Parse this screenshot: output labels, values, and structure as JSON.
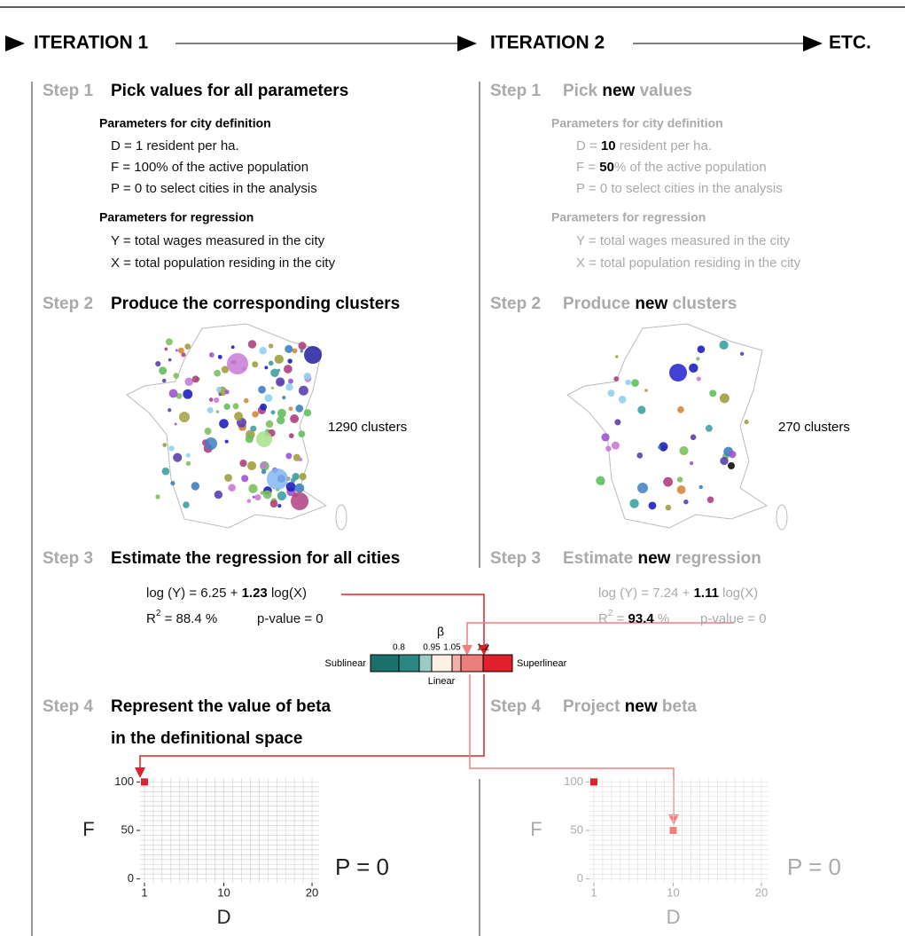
{
  "header": {
    "iterations": [
      "ITERATION 1",
      "ITERATION 2"
    ],
    "etc": "ETC."
  },
  "columns": [
    {
      "step1": {
        "label": "Step 1",
        "title": [
          [
            {
              "text": "Pick values for all parameters"
            }
          ]
        ],
        "city_heading": "Parameters for city definition",
        "city_params": [
          [
            {
              "text": "D = 1 resident per ha."
            }
          ],
          [
            {
              "text": "F = 100% of the active population"
            }
          ],
          [
            {
              "text": "P = 0 to select cities in the analysis"
            }
          ]
        ],
        "regression_heading": "Parameters for regression",
        "regression_params": [
          [
            {
              "text": "Y = total wages measured in the city"
            }
          ],
          [
            {
              "text": "X = total population residing in the city"
            }
          ]
        ]
      },
      "step2": {
        "label": "Step 2",
        "title": [
          [
            {
              "text": "Produce the corresponding clusters"
            }
          ]
        ],
        "clusters": "1290 clusters"
      },
      "step3": {
        "label": "Step 3",
        "title": [
          [
            {
              "text": "Estimate the regression for all cities"
            }
          ]
        ],
        "equation": [
          {
            "text": "log (Y) = 6.25 + "
          },
          {
            "text": "1.23",
            "emphasis": true
          },
          {
            "text": " log(X)"
          }
        ],
        "r2": [
          {
            "text": "R"
          },
          {
            "text": "2",
            "sup": true
          },
          {
            "text": " = 88.4 %"
          }
        ],
        "p_value": "p-value = 0"
      },
      "step4": {
        "label": "Step 4",
        "title": [
          [
            {
              "text": "Represent the value of beta"
            }
          ],
          [
            {
              "text": "in the definitional space"
            }
          ]
        ],
        "chart": {
          "type": "scatter",
          "x": [
            1
          ],
          "y": [
            100
          ],
          "colors": [
            "#e0202a"
          ],
          "xlim": [
            0.5,
            20.8
          ],
          "ylim": [
            -4,
            104
          ],
          "xticks": [
            1,
            10,
            20
          ],
          "yticks": [
            0,
            50,
            100
          ],
          "xlabel": "D",
          "ylabel": "F",
          "annotation": "P = 0"
        }
      }
    },
    {
      "step1": {
        "label": "Step 1",
        "title": [
          [
            {
              "text": "Pick "
            },
            {
              "text": "new",
              "emphasis": true
            },
            {
              "text": " values"
            }
          ]
        ],
        "city_heading": "Parameters for city definition",
        "city_params": [
          [
            {
              "text": "D = "
            },
            {
              "text": "10",
              "emphasis": true
            },
            {
              "text": " resident per ha."
            }
          ],
          [
            {
              "text": "F = "
            },
            {
              "text": "50",
              "emphasis": true
            },
            {
              "text": "% of the active population"
            }
          ],
          [
            {
              "text": "P = 0 to select cities in the analysis"
            }
          ]
        ],
        "regression_heading": "Parameters for regression",
        "regression_params": [
          [
            {
              "text": "Y = total wages measured in the city"
            }
          ],
          [
            {
              "text": "X = total population residing in the city"
            }
          ]
        ]
      },
      "step2": {
        "label": "Step 2",
        "title": [
          [
            {
              "text": "Produce "
            },
            {
              "text": "new",
              "emphasis": true
            },
            {
              "text": " clusters"
            }
          ]
        ],
        "clusters": "270 clusters"
      },
      "step3": {
        "label": "Step 3",
        "title": [
          [
            {
              "text": "Estimate "
            },
            {
              "text": "new",
              "emphasis": true
            },
            {
              "text": " regression"
            }
          ]
        ],
        "equation": [
          {
            "text": "log (Y) = 7.24 + "
          },
          {
            "text": "1.11",
            "emphasis": true
          },
          {
            "text": " log(X)"
          }
        ],
        "r2": [
          {
            "text": "R"
          },
          {
            "text": "2",
            "sup": true
          },
          {
            "text": " = "
          },
          {
            "text": "93.4",
            "emphasis": true
          },
          {
            "text": " %"
          }
        ],
        "p_value": "p-value = 0"
      },
      "step4": {
        "label": "Step 4",
        "title": [
          [
            {
              "text": "Project "
            },
            {
              "text": "new",
              "emphasis": true
            },
            {
              "text": " beta"
            }
          ]
        ],
        "chart": {
          "type": "scatter",
          "x": [
            1,
            10
          ],
          "y": [
            100,
            50
          ],
          "colors": [
            "#e0202a",
            "#f08080"
          ],
          "xlim": [
            0.5,
            20.8
          ],
          "ylim": [
            -4,
            104
          ],
          "xticks": [
            1,
            10,
            20
          ],
          "yticks": [
            0,
            50,
            100
          ],
          "xlabel": "D",
          "ylabel": "F",
          "annotation": "P = 0"
        }
      }
    }
  ],
  "beta_scale": {
    "symbol": "β",
    "ticks": [
      0.8,
      0.95,
      1.05,
      1.2
    ],
    "left": "Sublinear",
    "center": "Linear",
    "right": "Superlinear",
    "colors": [
      "#1c706c",
      "#2d8683",
      "#9ccbc6",
      "#fdf1e6",
      "#f5b1a8",
      "#ec7f7b",
      "#e0202a"
    ]
  }
}
